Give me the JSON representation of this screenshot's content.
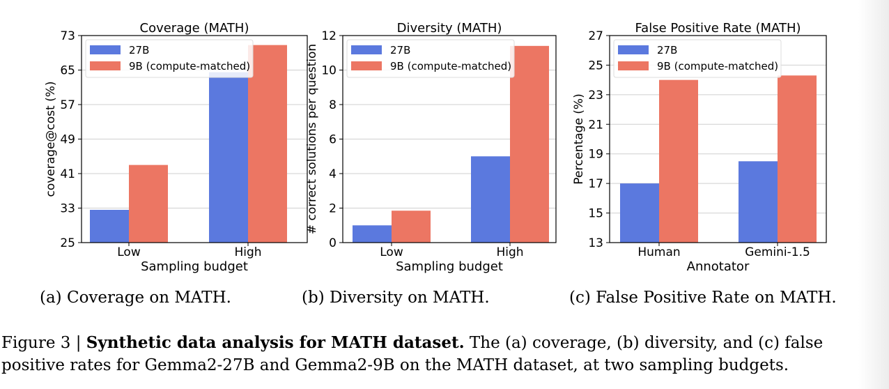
{
  "colors": {
    "series_27b": "#5b79de",
    "series_9b": "#ec7663"
  },
  "chart_data": [
    {
      "type": "bar",
      "title": "Coverage (MATH)",
      "xlabel": "Sampling budget",
      "ylabel": "coverage@cost (%)",
      "categories": [
        "Low",
        "High"
      ],
      "ylim": [
        25,
        73
      ],
      "yticks": [
        "25",
        "33",
        "41",
        "49",
        "57",
        "65",
        "73"
      ],
      "grid": true,
      "legend_position": "top-left",
      "series": [
        {
          "name": "27B",
          "values": [
            32.6,
            64.5
          ]
        },
        {
          "name": "9B (compute-matched)",
          "values": [
            43.0,
            70.8
          ]
        }
      ]
    },
    {
      "type": "bar",
      "title": "Diversity (MATH)",
      "xlabel": "Sampling budget",
      "ylabel": "# correct solutions per question",
      "categories": [
        "Low",
        "High"
      ],
      "ylim": [
        0,
        12
      ],
      "yticks": [
        "0",
        "2",
        "4",
        "6",
        "8",
        "10",
        "12"
      ],
      "grid": true,
      "legend_position": "top-left",
      "series": [
        {
          "name": "27B",
          "values": [
            1.0,
            5.0
          ]
        },
        {
          "name": "9B (compute-matched)",
          "values": [
            1.85,
            11.4
          ]
        }
      ]
    },
    {
      "type": "bar",
      "title": "False Positive Rate (MATH)",
      "xlabel": "Annotator",
      "ylabel": "Percentage (%)",
      "categories": [
        "Human",
        "Gemini-1.5"
      ],
      "ylim": [
        13,
        27
      ],
      "yticks": [
        "13",
        "15",
        "17",
        "19",
        "21",
        "23",
        "25",
        "27"
      ],
      "grid": true,
      "legend_position": "top-left",
      "series": [
        {
          "name": "27B",
          "values": [
            17.0,
            18.5
          ]
        },
        {
          "name": "9B (compute-matched)",
          "values": [
            24.0,
            24.3
          ]
        }
      ]
    }
  ],
  "captions": {
    "a": "(a) Coverage on MATH.",
    "b": "(b) Diversity on MATH.",
    "c": "(c) False Positive Rate on MATH."
  },
  "figure_caption": {
    "label": "Figure 3 | ",
    "title": "Synthetic data analysis for MATH dataset.",
    "text": " The (a) coverage, (b) diversity, and (c) false positive rates for Gemma2-27B and Gemma2-9B on the MATH dataset, at two sampling budgets."
  }
}
